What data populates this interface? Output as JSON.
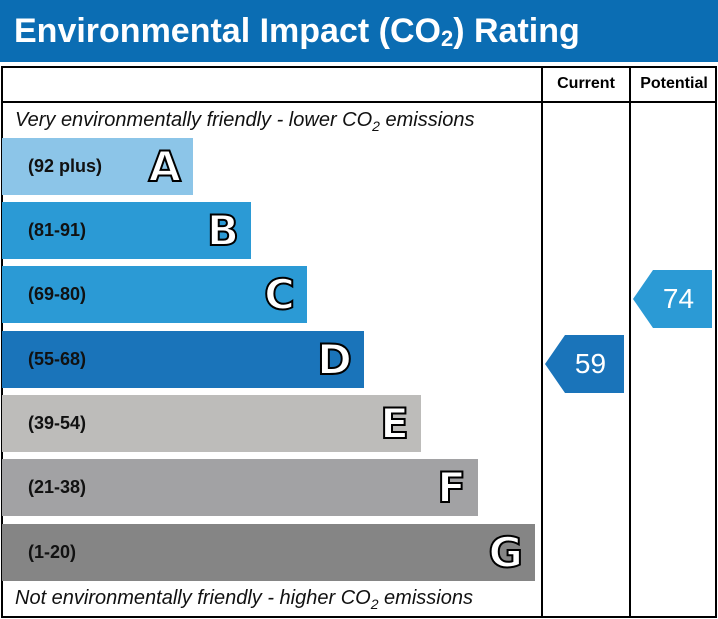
{
  "title": {
    "main": "Environmental Impact (CO",
    "sub": "2",
    "end": ") Rating"
  },
  "columns": {
    "current": "Current",
    "potential": "Potential"
  },
  "captions": {
    "top": {
      "pre": "Very environmentally friendly - lower CO",
      "sub": "2",
      "post": " emissions"
    },
    "bottom": {
      "pre": "Not environmentally friendly - higher CO",
      "sub": "2",
      "post": " emissions"
    }
  },
  "chart_data": {
    "type": "bar",
    "bands": [
      {
        "letter": "A",
        "range": "(92 plus)",
        "color": "#8cc5e8"
      },
      {
        "letter": "B",
        "range": "(81-91)",
        "color": "#2b9ad5"
      },
      {
        "letter": "C",
        "range": "(69-80)",
        "color": "#2b9ad5"
      },
      {
        "letter": "D",
        "range": "(55-68)",
        "color": "#1a74ba"
      },
      {
        "letter": "E",
        "range": "(39-54)",
        "color": "#bdbcba"
      },
      {
        "letter": "F",
        "range": "(21-38)",
        "color": "#a2a2a4"
      },
      {
        "letter": "G",
        "range": "(1-20)",
        "color": "#858585"
      }
    ],
    "current": {
      "value": "59",
      "band": "D",
      "color": "#1a74ba"
    },
    "potential": {
      "value": "74",
      "band": "C",
      "color": "#2b9ad5"
    }
  }
}
